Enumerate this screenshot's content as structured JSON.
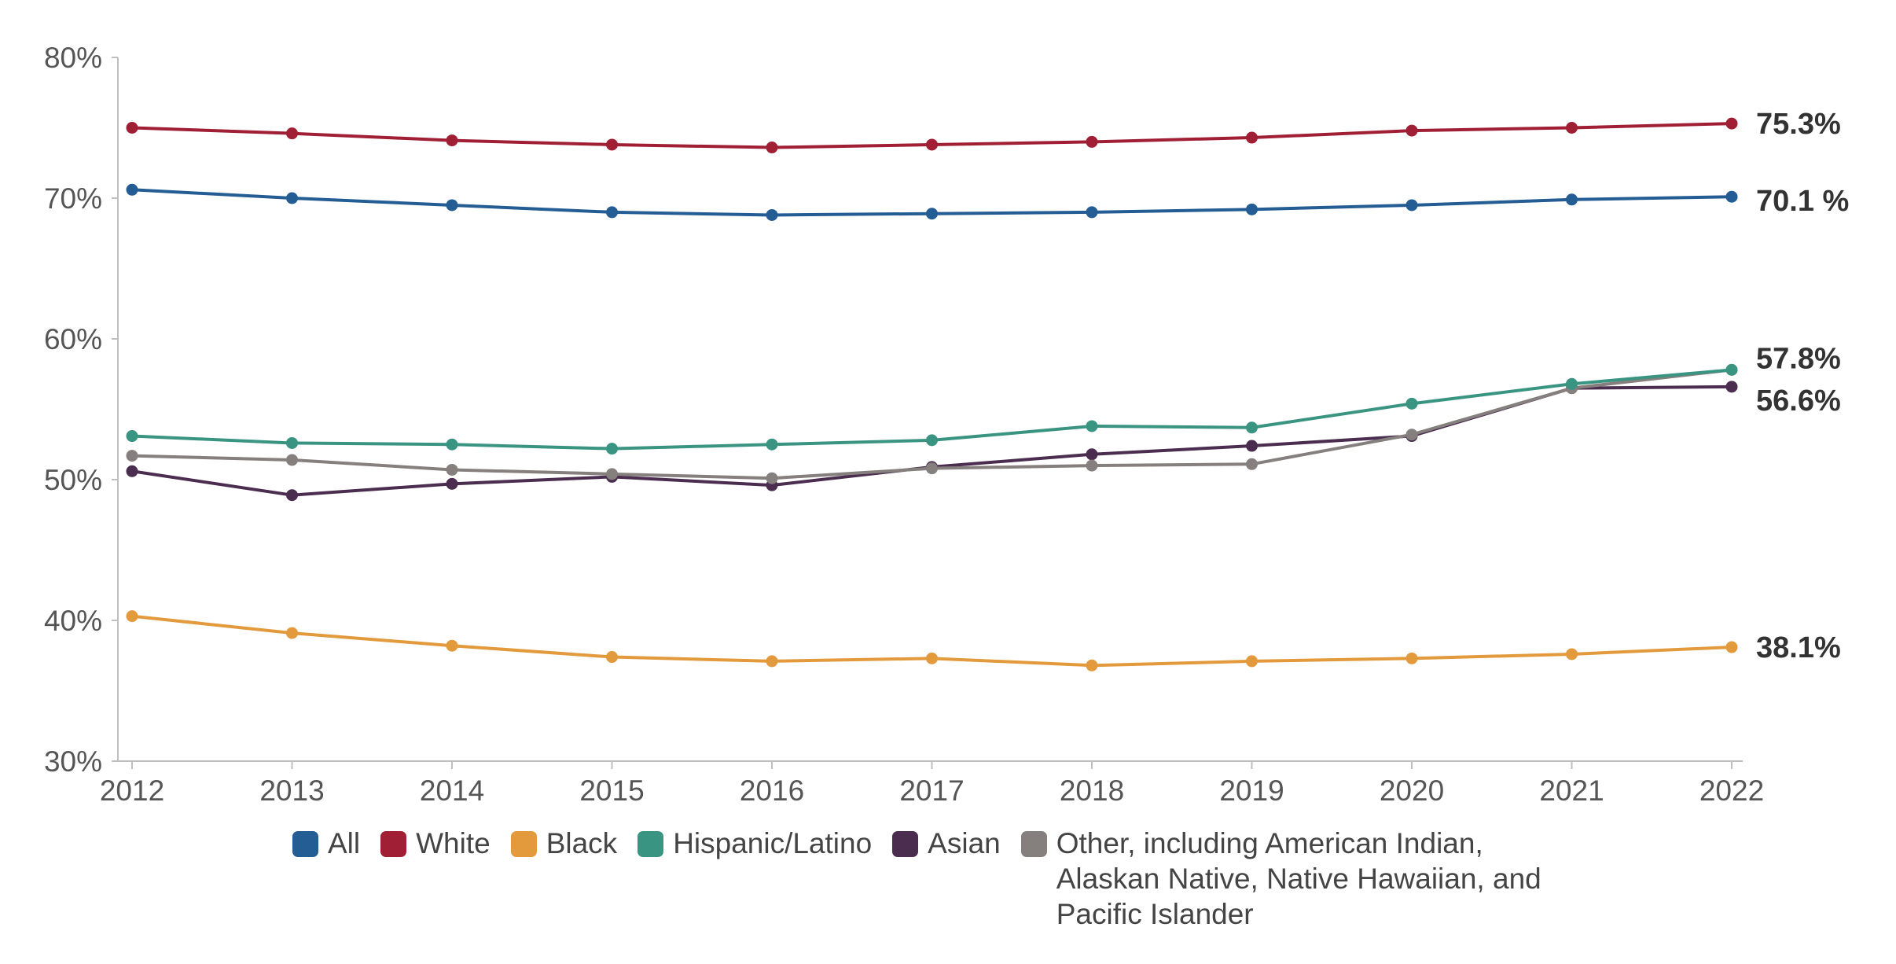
{
  "chart_data": {
    "type": "line",
    "x": [
      "2012",
      "2013",
      "2014",
      "2015",
      "2016",
      "2017",
      "2018",
      "2019",
      "2020",
      "2021",
      "2022"
    ],
    "ylim": [
      30,
      80
    ],
    "yticks": [
      "30%",
      "40%",
      "50%",
      "60%",
      "70%",
      "80%"
    ],
    "grid": false,
    "legend_position": "bottom",
    "series": [
      {
        "name": "All",
        "color": "#245C94",
        "values": [
          70.6,
          70.0,
          69.5,
          69.0,
          68.8,
          68.9,
          69.0,
          69.2,
          69.5,
          69.9,
          70.1
        ],
        "end_label": "70.1 %"
      },
      {
        "name": "White",
        "color": "#A11F35",
        "values": [
          75.0,
          74.6,
          74.1,
          73.8,
          73.6,
          73.8,
          74.0,
          74.3,
          74.8,
          75.0,
          75.3
        ],
        "end_label": "75.3%"
      },
      {
        "name": "Black",
        "color": "#E39A3C",
        "values": [
          40.3,
          39.1,
          38.2,
          37.4,
          37.1,
          37.3,
          36.8,
          37.1,
          37.3,
          37.6,
          38.1
        ],
        "end_label": "38.1%"
      },
      {
        "name": "Hispanic/Latino",
        "color": "#3A9482",
        "values": [
          53.1,
          52.6,
          52.5,
          52.2,
          52.5,
          52.8,
          53.8,
          53.7,
          55.4,
          56.8,
          57.8
        ],
        "end_label": "57.8%"
      },
      {
        "name": "Asian",
        "color": "#4A2D4F",
        "values": [
          50.6,
          48.9,
          49.7,
          50.2,
          49.6,
          50.9,
          51.8,
          52.4,
          53.1,
          56.5,
          56.6
        ],
        "end_label": "56.6%"
      },
      {
        "name": "Other, including American Indian, Alaskan Native, Native Hawaiian, and Pacific Islander",
        "color": "#85807E",
        "values": [
          51.7,
          51.4,
          50.7,
          50.4,
          50.1,
          50.8,
          51.0,
          51.1,
          53.2,
          56.5,
          57.8
        ],
        "end_label": ""
      }
    ]
  }
}
